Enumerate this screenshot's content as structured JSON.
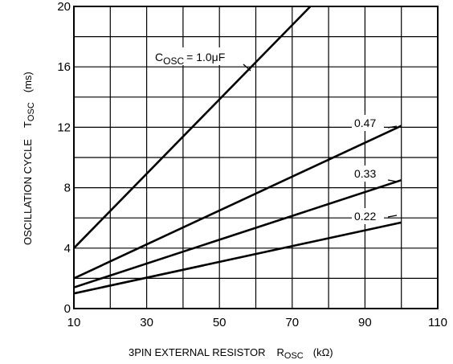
{
  "chart_data": {
    "type": "line",
    "xlabel": {
      "text": "3PIN EXTERNAL RESISTOR",
      "symbol": "R",
      "symbol_sub": "OSC",
      "unit": "(kΩ)"
    },
    "ylabel": {
      "text": "OSCILLATION CYCLE",
      "symbol": "T",
      "symbol_sub": "OSC",
      "unit": "(ms)"
    },
    "xlim": [
      10,
      110
    ],
    "ylim": [
      0,
      20
    ],
    "x_ticks": [
      10,
      30,
      50,
      70,
      90,
      110
    ],
    "y_ticks": [
      0,
      4,
      8,
      12,
      16,
      20
    ],
    "grid": "on, minor every 10 kΩ and 2 ms",
    "series": [
      {
        "name": "C_OSC = 1.0μF",
        "label_prefix": "C",
        "label_sub": "OSC",
        "label_value": "= 1.0μF",
        "x": [
          10,
          75
        ],
        "y": [
          4.0,
          20.0
        ]
      },
      {
        "name": "0.47",
        "x": [
          10,
          100
        ],
        "y": [
          2.0,
          12.1
        ]
      },
      {
        "name": "0.33",
        "x": [
          10,
          100
        ],
        "y": [
          1.4,
          8.5
        ]
      },
      {
        "name": "0.22",
        "x": [
          10,
          100
        ],
        "y": [
          1.0,
          5.7
        ]
      }
    ]
  }
}
